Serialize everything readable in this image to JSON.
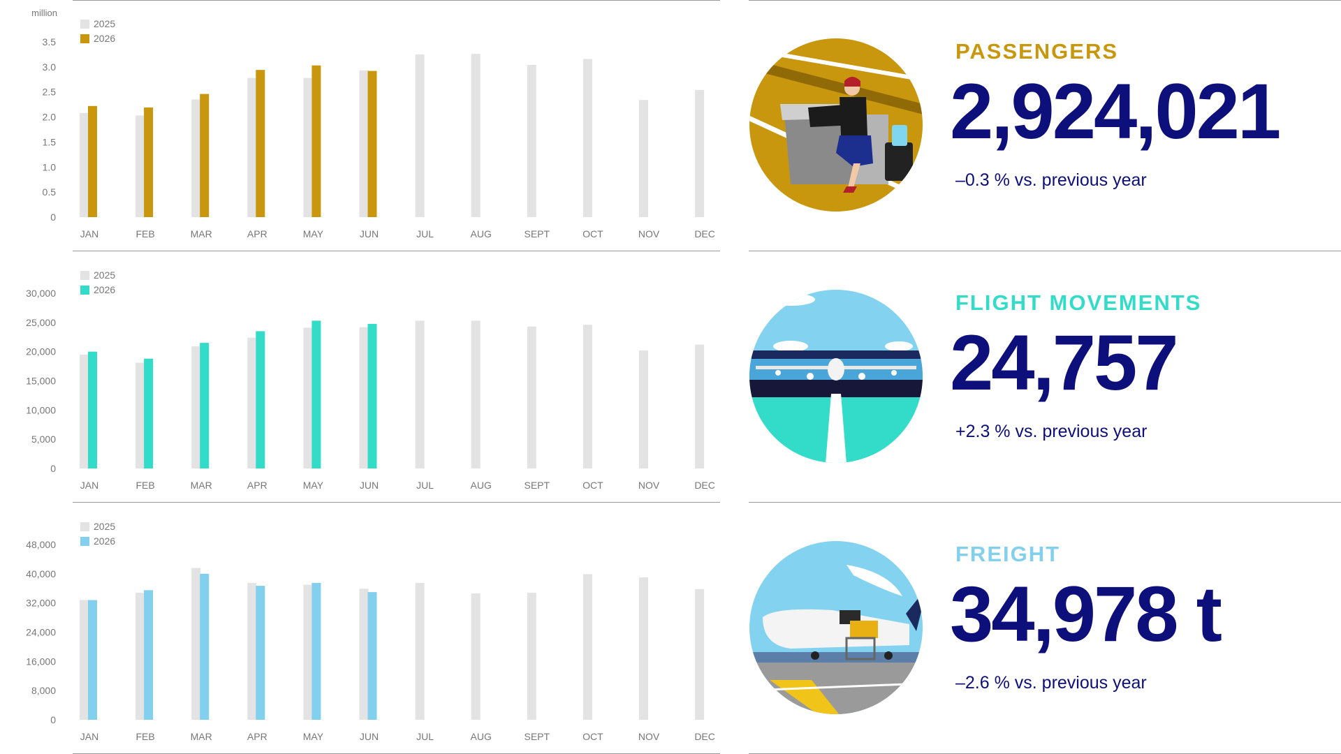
{
  "chart_data": [
    {
      "type": "bar",
      "unit_label": "million",
      "categories": [
        "JAN",
        "FEB",
        "MAR",
        "APR",
        "MAY",
        "JUN",
        "JUL",
        "AUG",
        "SEPT",
        "OCT",
        "NOV",
        "DEC"
      ],
      "series": [
        {
          "name": "2025",
          "color": "#e3e3e3",
          "values": [
            2.08,
            2.03,
            2.35,
            2.78,
            2.78,
            2.93,
            3.25,
            3.26,
            3.04,
            3.16,
            2.34,
            2.54
          ]
        },
        {
          "name": "2026",
          "color": "#c9970d",
          "values": [
            2.22,
            2.19,
            2.46,
            2.94,
            3.03,
            2.92,
            null,
            null,
            null,
            null,
            null,
            null
          ]
        }
      ],
      "yticks": [
        "0",
        "0.5",
        "1.0",
        "1.5",
        "2.0",
        "2.5",
        "3.0",
        "3.5"
      ],
      "ylim": [
        0,
        3.5
      ],
      "legend": "top-left",
      "grid": false
    },
    {
      "type": "bar",
      "unit_label": "",
      "categories": [
        "JAN",
        "FEB",
        "MAR",
        "APR",
        "MAY",
        "JUN",
        "JUL",
        "AUG",
        "SEPT",
        "OCT",
        "NOV",
        "DEC"
      ],
      "series": [
        {
          "name": "2025",
          "color": "#e3e3e3",
          "values": [
            19500,
            18100,
            20900,
            22400,
            24100,
            24200,
            25300,
            25300,
            24300,
            24600,
            20200,
            21200
          ]
        },
        {
          "name": "2026",
          "color": "#33dcc8",
          "values": [
            20000,
            18800,
            21500,
            23500,
            25300,
            24750,
            null,
            null,
            null,
            null,
            null,
            null
          ]
        }
      ],
      "yticks": [
        "0",
        "5,000",
        "10,000",
        "15,000",
        "20,000",
        "25,000",
        "30,000"
      ],
      "ylim": [
        0,
        30000
      ],
      "legend": "top-left",
      "grid": false
    },
    {
      "type": "bar",
      "unit_label": "",
      "categories": [
        "JAN",
        "FEB",
        "MAR",
        "APR",
        "MAY",
        "JUN",
        "JUL",
        "AUG",
        "SEPT",
        "OCT",
        "NOV",
        "DEC"
      ],
      "series": [
        {
          "name": "2025",
          "color": "#e3e3e3",
          "values": [
            32800,
            34800,
            41600,
            37500,
            37000,
            35900,
            37500,
            34600,
            34800,
            39900,
            39000,
            35800
          ]
        },
        {
          "name": "2026",
          "color": "#82cfee",
          "values": [
            32800,
            35500,
            40000,
            36700,
            37500,
            34978,
            null,
            null,
            null,
            null,
            null,
            null
          ]
        }
      ],
      "yticks": [
        "0",
        "8,000",
        "16,000",
        "24,000",
        "32,000",
        "40,000",
        "48,000"
      ],
      "ylim": [
        0,
        48000
      ],
      "legend": "top-left",
      "grid": false
    }
  ],
  "kpis": [
    {
      "label": "PASSENGERS",
      "value": "2,924,021",
      "change": "–0.3 % vs. previous year",
      "label_color": "#c9970d",
      "illustration": "passenger-illustration"
    },
    {
      "label": "FLIGHT MOVEMENTS",
      "value": "24,757",
      "change": "+2.3 % vs. previous year",
      "label_color": "#33dcc8",
      "illustration": "airplane-runway-illustration"
    },
    {
      "label": "FREIGHT",
      "value": "34,978 t",
      "change": "–2.6 % vs. previous year",
      "label_color": "#82cfee",
      "illustration": "cargo-plane-illustration"
    }
  ]
}
